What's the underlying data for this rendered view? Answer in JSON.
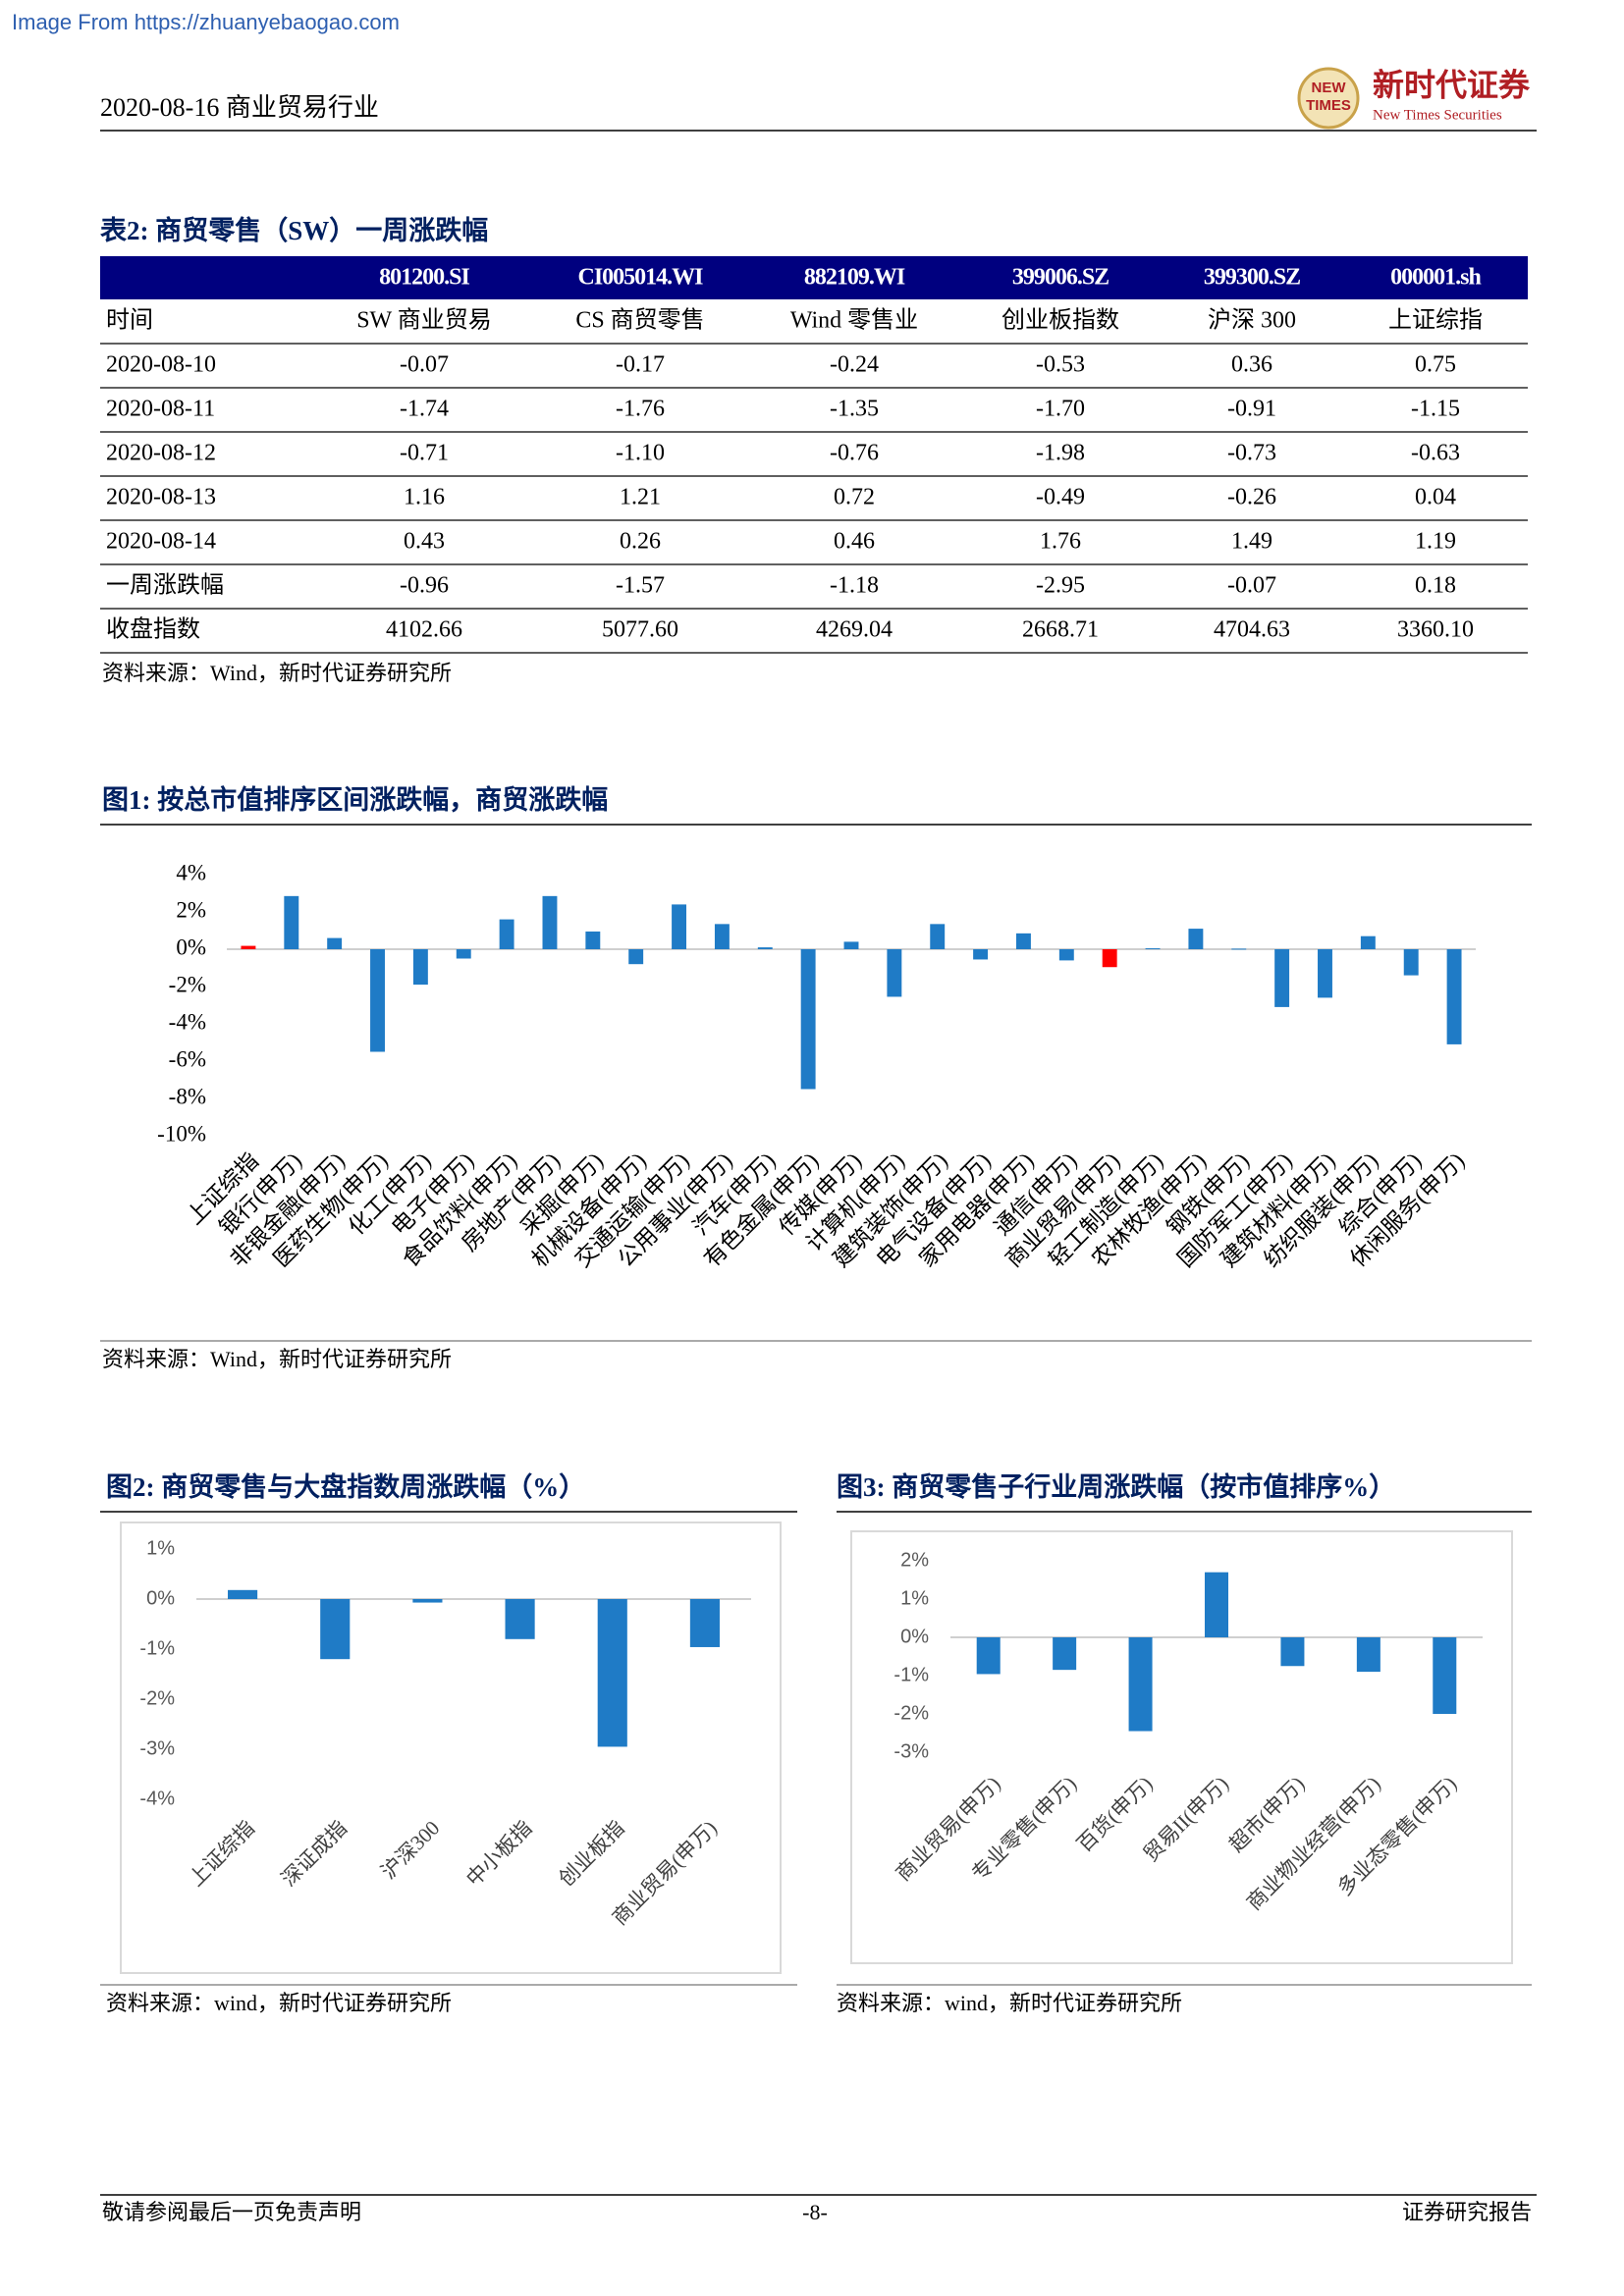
{
  "header": {
    "watermark": "Image From https://zhuanyebaogao.com",
    "date_industry": "2020-08-16 商业贸易行业",
    "logo_mark": [
      "NEW",
      "TIMES"
    ],
    "company": "新时代证券",
    "company_en": "New Times Securities"
  },
  "table": {
    "title": "表2:  商贸零售（SW）一周涨跌幅",
    "columns": [
      "801200.SI",
      "CI005014.WI",
      "882109.WI",
      "399006.SZ",
      "399300.SZ",
      "000001.sh"
    ],
    "rows": [
      [
        "时间",
        "SW 商业贸易",
        "CS 商贸零售",
        "Wind 零售业",
        "创业板指数",
        "沪深 300",
        "上证综指"
      ],
      [
        "2020-08-10",
        "-0.07",
        "-0.17",
        "-0.24",
        "-0.53",
        "0.36",
        "0.75"
      ],
      [
        "2020-08-11",
        "-1.74",
        "-1.76",
        "-1.35",
        "-1.70",
        "-0.91",
        "-1.15"
      ],
      [
        "2020-08-12",
        "-0.71",
        "-1.10",
        "-0.76",
        "-1.98",
        "-0.73",
        "-0.63"
      ],
      [
        "2020-08-13",
        "1.16",
        "1.21",
        "0.72",
        "-0.49",
        "-0.26",
        "0.04"
      ],
      [
        "2020-08-14",
        "0.43",
        "0.26",
        "0.46",
        "1.76",
        "1.49",
        "1.19"
      ],
      [
        "一周涨跌幅",
        "-0.96",
        "-1.57",
        "-1.18",
        "-2.95",
        "-0.07",
        "0.18"
      ],
      [
        "收盘指数",
        "4102.66",
        "5077.60",
        "4269.04",
        "2668.71",
        "4704.63",
        "3360.10"
      ]
    ],
    "source": "资料来源：Wind，新时代证券研究所"
  },
  "chart_data": [
    {
      "type": "bar",
      "title": "图1:   按总市值排序区间涨跌幅，商贸涨跌幅",
      "categories": [
        "上证综指",
        "银行(申万)",
        "非银金融(申万)",
        "医药生物(申万)",
        "化工(申万)",
        "电子(申万)",
        "食品饮料(申万)",
        "房地产(申万)",
        "采掘(申万)",
        "机械设备(申万)",
        "交通运输(申万)",
        "公用事业(申万)",
        "汽车(申万)",
        "有色金属(申万)",
        "传媒(申万)",
        "计算机(申万)",
        "建筑装饰(申万)",
        "电气设备(申万)",
        "家用电器(申万)",
        "通信(申万)",
        "商业贸易(申万)",
        "轻工制造(申万)",
        "农林牧渔(申万)",
        "钢铁(申万)",
        "国防军工(申万)",
        "建筑材料(申万)",
        "纺织服装(申万)",
        "综合(申万)",
        "休闲服务(申万)"
      ],
      "values": [
        0.18,
        2.85,
        0.6,
        -5.5,
        -1.9,
        -0.5,
        1.6,
        2.85,
        0.95,
        -0.8,
        2.4,
        1.35,
        0.1,
        -7.5,
        0.4,
        -2.55,
        1.35,
        -0.55,
        0.85,
        -0.6,
        -0.96,
        0.05,
        1.1,
        0.03,
        -3.1,
        -2.6,
        0.7,
        -1.4,
        -5.1
      ],
      "colors": [
        "#ff0000",
        "#1f7bc6",
        "#1f7bc6",
        "#1f7bc6",
        "#1f7bc6",
        "#1f7bc6",
        "#1f7bc6",
        "#1f7bc6",
        "#1f7bc6",
        "#1f7bc6",
        "#1f7bc6",
        "#1f7bc6",
        "#1f7bc6",
        "#1f7bc6",
        "#1f7bc6",
        "#1f7bc6",
        "#1f7bc6",
        "#1f7bc6",
        "#1f7bc6",
        "#1f7bc6",
        "#ff0000",
        "#1f7bc6",
        "#1f7bc6",
        "#1f7bc6",
        "#1f7bc6",
        "#1f7bc6",
        "#1f7bc6",
        "#1f7bc6",
        "#1f7bc6"
      ],
      "ylim": [
        -10,
        4
      ],
      "yticks": [
        {
          "value": 4,
          "label": "4%"
        },
        {
          "value": 2,
          "label": "2%"
        },
        {
          "value": 0,
          "label": "0%"
        },
        {
          "value": -2,
          "label": "-2%"
        },
        {
          "value": -4,
          "label": "-4%"
        },
        {
          "value": -6,
          "label": "-6%"
        },
        {
          "value": -8,
          "label": "-8%"
        },
        {
          "value": -10,
          "label": "-10%"
        }
      ],
      "source": "资料来源：Wind，新时代证券研究所"
    },
    {
      "type": "bar",
      "title": "图2:   商贸零售与大盘指数周涨跌幅（%）",
      "categories": [
        "上证综指",
        "深证成指",
        "沪深300",
        "中小板指",
        "创业板指",
        "商业贸易(申万)"
      ],
      "values": [
        0.18,
        -1.2,
        -0.07,
        -0.8,
        -2.95,
        -0.96
      ],
      "color": "#1f7bc6",
      "ylim": [
        -4,
        1
      ],
      "yticks": [
        {
          "value": 1,
          "label": "1%"
        },
        {
          "value": 0,
          "label": "0%"
        },
        {
          "value": -1,
          "label": "-1%"
        },
        {
          "value": -2,
          "label": "-2%"
        },
        {
          "value": -3,
          "label": "-3%"
        },
        {
          "value": -4,
          "label": "-4%"
        }
      ],
      "source": "资料来源：wind，新时代证券研究所"
    },
    {
      "type": "bar",
      "title": "图3:   商贸零售子行业周涨跌幅（按市值排序%）",
      "categories": [
        "商业贸易(申万)",
        "专业零售(申万)",
        "百货(申万)",
        "贸易II(申万)",
        "超市(申万)",
        "商业物业经营(申万)",
        "多业态零售(申万)"
      ],
      "values": [
        -0.96,
        -0.85,
        -2.45,
        1.7,
        -0.75,
        -0.9,
        -2.0
      ],
      "color": "#1f7bc6",
      "ylim": [
        -3,
        2
      ],
      "yticks": [
        {
          "value": 2,
          "label": "2%"
        },
        {
          "value": 1,
          "label": "1%"
        },
        {
          "value": 0,
          "label": "0%"
        },
        {
          "value": -1,
          "label": "-1%"
        },
        {
          "value": -2,
          "label": "-2%"
        },
        {
          "value": -3,
          "label": "-3%"
        }
      ],
      "source": "资料来源：wind，新时代证券研究所"
    }
  ],
  "footer": {
    "left": "敬请参阅最后一页免责声明",
    "page": "-8-",
    "right": "证券研究报告"
  }
}
